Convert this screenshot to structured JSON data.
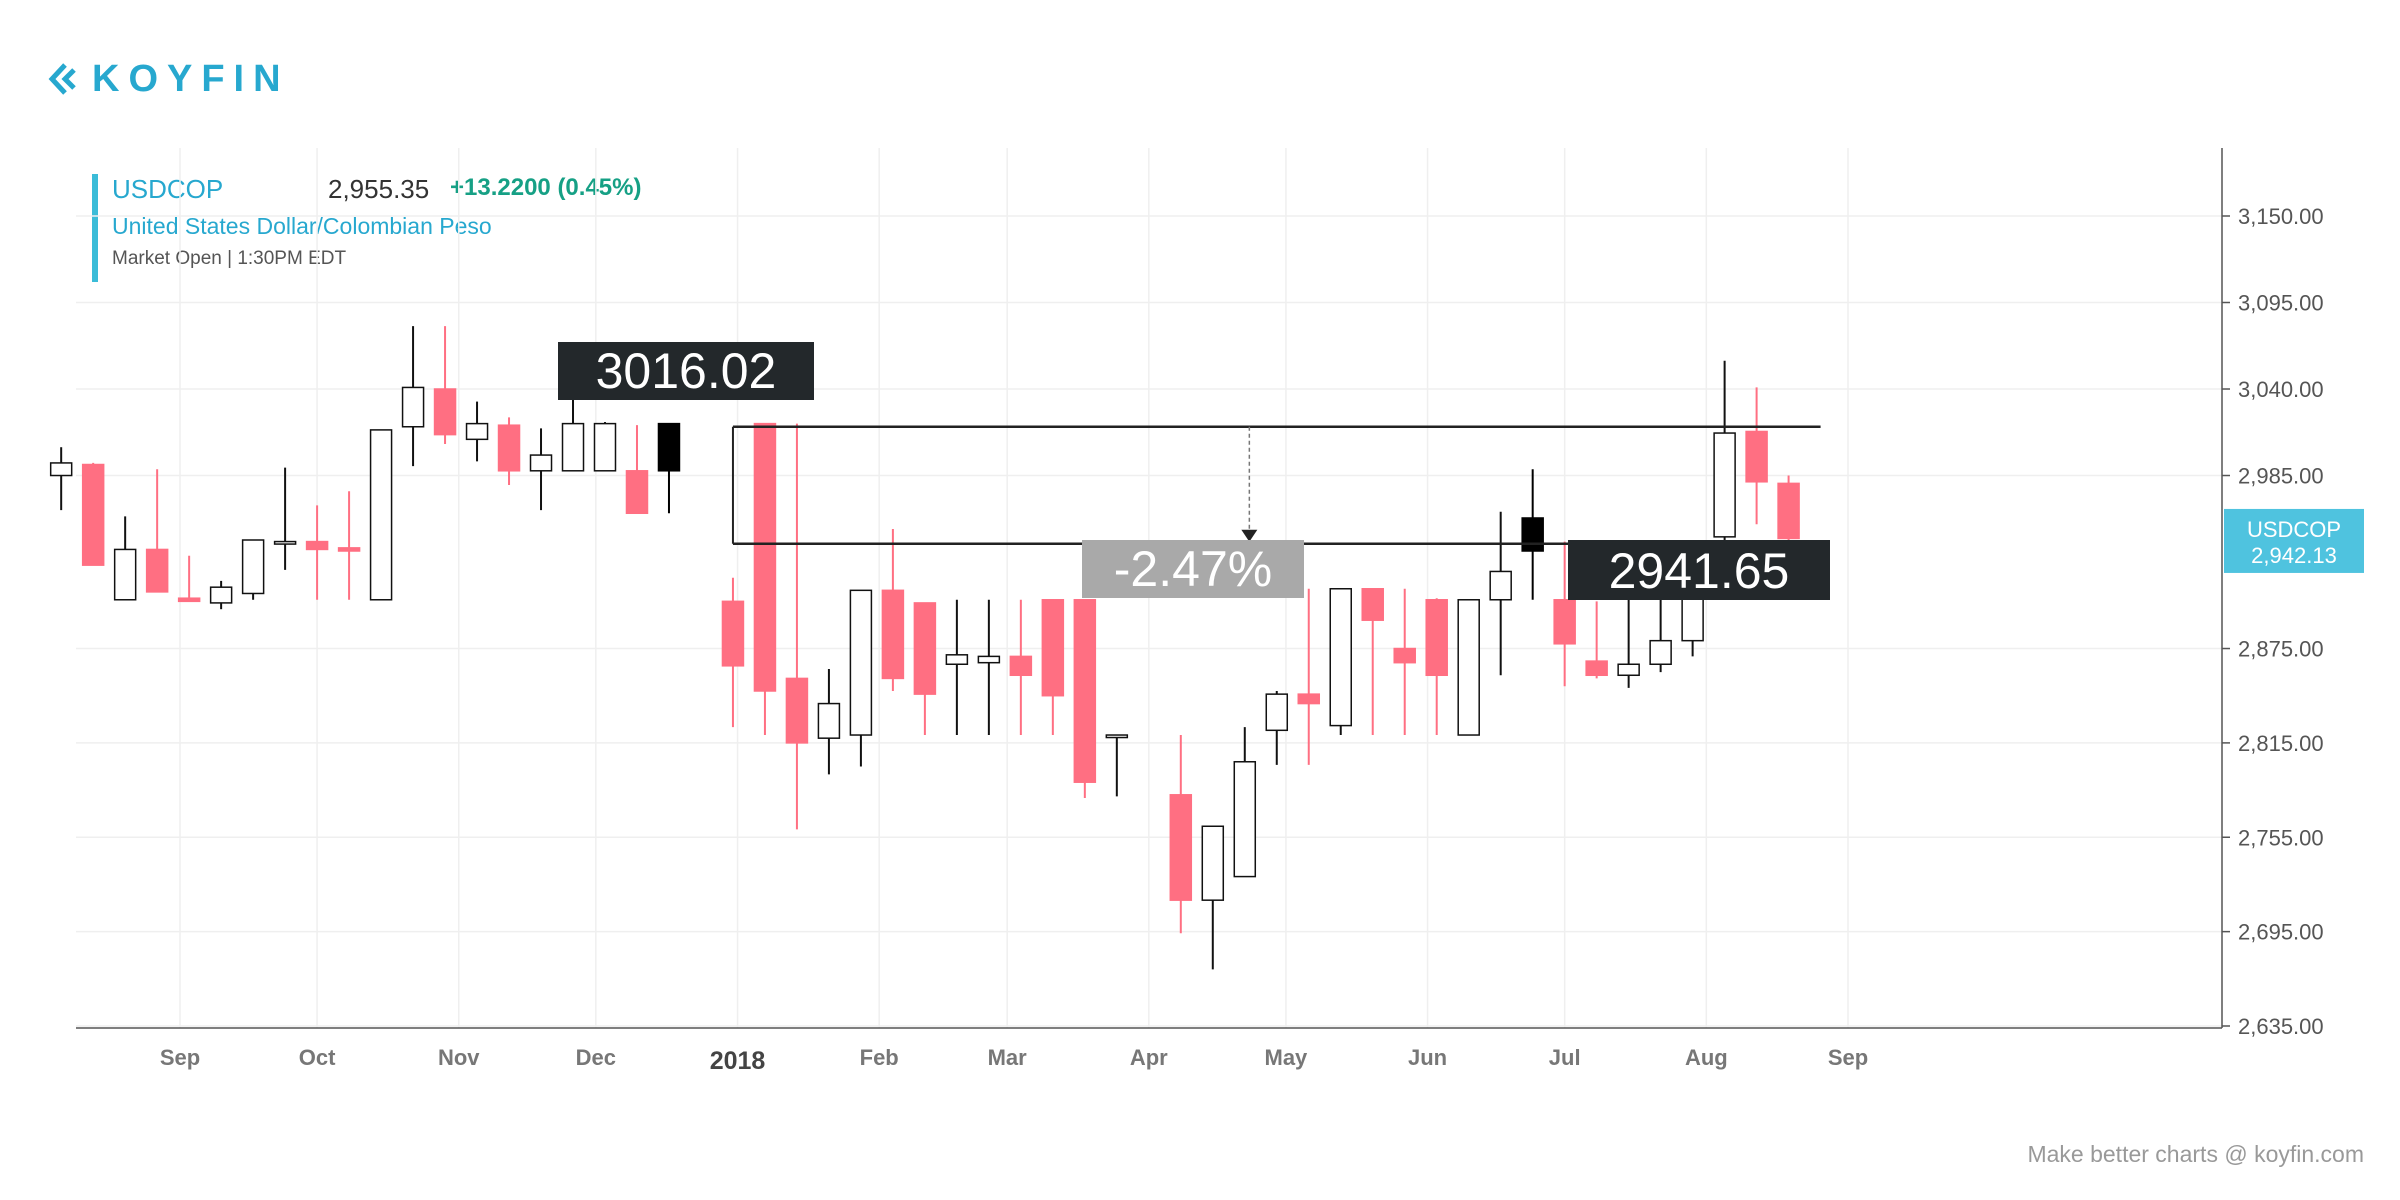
{
  "brand": {
    "logo_text": "KOYFIN",
    "footer": "Make better charts @ koyfin.com"
  },
  "legend": {
    "symbol": "USDCOP",
    "price": "2,955.35",
    "change": "+13.2200 (0.45%)",
    "name": "United States Dollar/Colombian Peso",
    "status": "Market Open |  1:30PM EDT"
  },
  "colors": {
    "up_fill": "#ffffff",
    "up_stroke": "#111111",
    "down_fill": "#ff6f82",
    "down_stroke": "#ff6f82",
    "grid": "#efefef",
    "accent": "#27a8cf",
    "price_tag": "#4fc3df",
    "label_dark": "#23282b",
    "label_grey": "#a9a9a9"
  },
  "chart_data": {
    "type": "candlestick",
    "ylim": [
      2635,
      3200
    ],
    "y_ticks": [
      "3,150.00",
      "3,095.00",
      "3,040.00",
      "2,985.00",
      "2,875.00",
      "2,815.00",
      "2,755.00",
      "2,695.00",
      "2,635.00"
    ],
    "y_tick_values": [
      3150,
      3095,
      3040,
      2985,
      2875,
      2815,
      2755,
      2695,
      2635
    ],
    "x_ticks": [
      {
        "label": "Sep",
        "date": "2017-09-01"
      },
      {
        "label": "Oct",
        "date": "2017-10-01"
      },
      {
        "label": "Nov",
        "date": "2017-11-01"
      },
      {
        "label": "Dec",
        "date": "2017-12-01"
      },
      {
        "label": "2018",
        "date": "2018-01-01",
        "bold": true
      },
      {
        "label": "Feb",
        "date": "2018-02-01"
      },
      {
        "label": "Mar",
        "date": "2018-03-01"
      },
      {
        "label": "Apr",
        "date": "2018-04-01"
      },
      {
        "label": "May",
        "date": "2018-05-01"
      },
      {
        "label": "Jun",
        "date": "2018-06-01"
      },
      {
        "label": "Jul",
        "date": "2018-07-01"
      },
      {
        "label": "Aug",
        "date": "2018-08-01"
      },
      {
        "label": "Sep",
        "date": "2018-09-01"
      }
    ],
    "candles": [
      {
        "date": "2017-08-06",
        "o": 2985,
        "h": 3003,
        "l": 2963,
        "c": 2993
      },
      {
        "date": "2017-08-13",
        "o": 2992,
        "h": 2993,
        "l": 2928,
        "c": 2928
      },
      {
        "date": "2017-08-20",
        "o": 2906,
        "h": 2959,
        "l": 2906,
        "c": 2938
      },
      {
        "date": "2017-08-27",
        "o": 2938,
        "h": 2989,
        "l": 2911,
        "c": 2911
      },
      {
        "date": "2017-09-03",
        "o": 2907,
        "h": 2934,
        "l": 2905,
        "c": 2905
      },
      {
        "date": "2017-09-10",
        "o": 2904,
        "h": 2918,
        "l": 2900,
        "c": 2914
      },
      {
        "date": "2017-09-17",
        "o": 2910,
        "h": 2944,
        "l": 2906,
        "c": 2944
      },
      {
        "date": "2017-09-24",
        "o": 2942,
        "h": 2990,
        "l": 2925,
        "c": 2943
      },
      {
        "date": "2017-10-01",
        "o": 2943,
        "h": 2966,
        "l": 2906,
        "c": 2938
      },
      {
        "date": "2017-10-08",
        "o": 2939,
        "h": 2975,
        "l": 2906,
        "c": 2937
      },
      {
        "date": "2017-10-15",
        "o": 2906,
        "h": 3014,
        "l": 2906,
        "c": 3014
      },
      {
        "date": "2017-10-22",
        "o": 3016,
        "h": 3080,
        "l": 2991,
        "c": 3041
      },
      {
        "date": "2017-10-29",
        "o": 3040,
        "h": 3080,
        "l": 3005,
        "c": 3011
      },
      {
        "date": "2017-11-05",
        "o": 3008,
        "h": 3032,
        "l": 2994,
        "c": 3018
      },
      {
        "date": "2017-11-12",
        "o": 3017,
        "h": 3022,
        "l": 2979,
        "c": 2988
      },
      {
        "date": "2017-11-19",
        "o": 2988,
        "h": 3015,
        "l": 2963,
        "c": 2998
      },
      {
        "date": "2017-11-26",
        "o": 2988,
        "h": 3035,
        "l": 2988,
        "c": 3018
      },
      {
        "date": "2017-12-03",
        "o": 2988,
        "h": 3019,
        "l": 2988,
        "c": 3018
      },
      {
        "date": "2017-12-10",
        "o": 2988,
        "h": 3017,
        "l": 2961,
        "c": 2961
      },
      {
        "date": "2017-12-17",
        "o": 2988,
        "h": 3018,
        "l": 2961,
        "c": 3018,
        "highlight": true
      },
      {
        "date": "2017-12-31",
        "o": 2905,
        "h": 2920,
        "l": 2825,
        "c": 2864
      },
      {
        "date": "2018-01-07",
        "o": 3018,
        "h": 3018,
        "l": 2820,
        "c": 2848
      },
      {
        "date": "2018-01-14",
        "o": 2856,
        "h": 3018,
        "l": 2760,
        "c": 2815
      },
      {
        "date": "2018-01-21",
        "o": 2818,
        "h": 2862,
        "l": 2795,
        "c": 2840
      },
      {
        "date": "2018-01-28",
        "o": 2820,
        "h": 2912,
        "l": 2800,
        "c": 2912
      },
      {
        "date": "2018-02-04",
        "o": 2912,
        "h": 2951,
        "l": 2848,
        "c": 2856
      },
      {
        "date": "2018-02-11",
        "o": 2904,
        "h": 2904,
        "l": 2820,
        "c": 2846
      },
      {
        "date": "2018-02-18",
        "o": 2865,
        "h": 2906,
        "l": 2820,
        "c": 2871
      },
      {
        "date": "2018-02-25",
        "o": 2866,
        "h": 2906,
        "l": 2820,
        "c": 2870
      },
      {
        "date": "2018-03-04",
        "o": 2870,
        "h": 2906,
        "l": 2820,
        "c": 2858
      },
      {
        "date": "2018-03-11",
        "o": 2906,
        "h": 2906,
        "l": 2820,
        "c": 2845
      },
      {
        "date": "2018-03-18",
        "o": 2906,
        "h": 2906,
        "l": 2780,
        "c": 2790
      },
      {
        "date": "2018-03-25",
        "o": 2820,
        "h": 2820,
        "l": 2781,
        "c": 2820
      },
      {
        "date": "2018-04-08",
        "o": 2782,
        "h": 2820,
        "l": 2694,
        "c": 2715
      },
      {
        "date": "2018-04-15",
        "o": 2715,
        "h": 2762,
        "l": 2671,
        "c": 2762
      },
      {
        "date": "2018-04-22",
        "o": 2730,
        "h": 2825,
        "l": 2730,
        "c": 2803
      },
      {
        "date": "2018-04-29",
        "o": 2823,
        "h": 2848,
        "l": 2801,
        "c": 2846
      },
      {
        "date": "2018-05-06",
        "o": 2846,
        "h": 2913,
        "l": 2801,
        "c": 2840
      },
      {
        "date": "2018-05-13",
        "o": 2826,
        "h": 2913,
        "l": 2820,
        "c": 2913
      },
      {
        "date": "2018-05-20",
        "o": 2913,
        "h": 2913,
        "l": 2820,
        "c": 2893
      },
      {
        "date": "2018-05-27",
        "o": 2875,
        "h": 2913,
        "l": 2820,
        "c": 2866
      },
      {
        "date": "2018-06-03",
        "o": 2906,
        "h": 2907,
        "l": 2820,
        "c": 2858
      },
      {
        "date": "2018-06-10",
        "o": 2820,
        "h": 2906,
        "l": 2820,
        "c": 2906
      },
      {
        "date": "2018-06-17",
        "o": 2906,
        "h": 2962,
        "l": 2858,
        "c": 2924
      },
      {
        "date": "2018-06-24",
        "o": 2937,
        "h": 2989,
        "l": 2906,
        "c": 2958,
        "highlight": true
      },
      {
        "date": "2018-07-01",
        "o": 2906,
        "h": 2943,
        "l": 2851,
        "c": 2878
      },
      {
        "date": "2018-07-08",
        "o": 2867,
        "h": 2905,
        "l": 2856,
        "c": 2858
      },
      {
        "date": "2018-07-15",
        "o": 2858,
        "h": 2906,
        "l": 2850,
        "c": 2865
      },
      {
        "date": "2018-07-22",
        "o": 2865,
        "h": 2920,
        "l": 2860,
        "c": 2880
      },
      {
        "date": "2018-07-29",
        "o": 2880,
        "h": 2930,
        "l": 2870,
        "c": 2930
      },
      {
        "date": "2018-08-05",
        "o": 2946,
        "h": 3058,
        "l": 2940,
        "c": 3012
      },
      {
        "date": "2018-08-12",
        "o": 3013,
        "h": 3041,
        "l": 2954,
        "c": 2981
      },
      {
        "date": "2018-08-19",
        "o": 2980,
        "h": 2985,
        "l": 2942,
        "c": 2945
      }
    ],
    "annotations": {
      "upper_level": 3016.02,
      "lower_level": 2941.65,
      "upper_label": "3016.02",
      "lower_label": "2941.65",
      "pct_label": "-2.47%",
      "start_date": "2017-12-31",
      "end_date": "2018-08-26",
      "arrow_date": "2018-04-23"
    },
    "last_price_tag": {
      "symbol": "USDCOP",
      "price": "2,942.13",
      "value": 2942.13
    }
  }
}
